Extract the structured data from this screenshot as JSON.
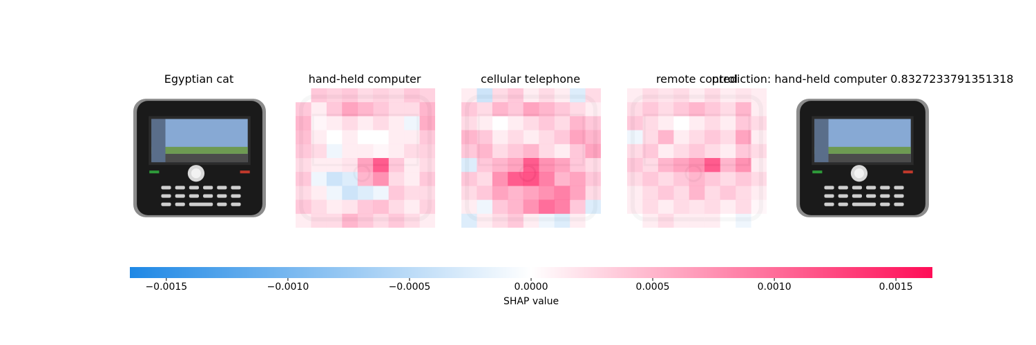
{
  "chart_data": {
    "type": "heatmap",
    "panels": [
      {
        "title": "Egyptian cat",
        "kind": "image"
      },
      {
        "title": "hand-held computer",
        "kind": "shap"
      },
      {
        "title": "cellular telephone",
        "kind": "shap"
      },
      {
        "title": "remote control",
        "kind": "shap"
      },
      {
        "title": "prediction: hand-held computer 0.8327233791351318",
        "kind": "image"
      }
    ],
    "colorbar": {
      "label": "SHAP value",
      "range": [
        -0.00165,
        0.00165
      ],
      "ticks": [
        -0.0015,
        -0.001,
        -0.0005,
        0,
        0.0005,
        0.001,
        0.0015
      ],
      "tick_labels": [
        "−0.0015",
        "−0.0010",
        "−0.0005",
        "0.0000",
        "0.0005",
        "0.0010",
        "0.0015"
      ],
      "low_color": "#1e88e5",
      "mid_color": "#ffffff",
      "high_color": "#ff0d57"
    },
    "shap_grids": [
      [
        [
          0.0,
          0.3,
          0.25,
          0.3,
          0.2,
          0.25,
          0.2,
          0.3,
          0.25
        ],
        [
          0.3,
          0.1,
          0.3,
          0.5,
          0.4,
          0.3,
          0.2,
          0.2,
          0.4
        ],
        [
          0.4,
          0.05,
          0.1,
          0.2,
          0.1,
          0.2,
          0.1,
          -0.1,
          0.45
        ],
        [
          0.35,
          0.1,
          0.0,
          0.1,
          0.0,
          0.0,
          0.1,
          0.1,
          0.3
        ],
        [
          0.3,
          0.2,
          -0.1,
          0.1,
          0.1,
          0.05,
          0.1,
          0.2,
          0.25
        ],
        [
          0.2,
          0.1,
          0.1,
          0.15,
          0.5,
          0.9,
          0.3,
          0.1,
          0.2
        ],
        [
          0.3,
          -0.1,
          -0.3,
          -0.2,
          0.4,
          0.6,
          0.2,
          0.1,
          0.3
        ],
        [
          0.2,
          0.1,
          -0.1,
          -0.3,
          -0.2,
          -0.1,
          0.3,
          0.2,
          0.2
        ],
        [
          0.3,
          0.2,
          0.1,
          0.15,
          0.3,
          0.35,
          0.2,
          0.1,
          0.25
        ],
        [
          0.1,
          0.2,
          0.2,
          0.4,
          0.3,
          0.2,
          0.3,
          0.2,
          0.1
        ]
      ],
      [
        [
          0.1,
          -0.3,
          0.2,
          0.3,
          0.1,
          0.2,
          0.1,
          -0.2,
          0.2
        ],
        [
          0.3,
          0.2,
          0.4,
          0.3,
          0.5,
          0.4,
          0.3,
          0.2,
          0.1
        ],
        [
          0.2,
          0.1,
          0.0,
          0.1,
          0.2,
          0.3,
          0.2,
          0.4,
          0.3
        ],
        [
          0.4,
          0.3,
          0.1,
          0.2,
          0.1,
          0.2,
          0.3,
          0.5,
          0.4
        ],
        [
          0.3,
          0.4,
          0.2,
          0.3,
          0.4,
          0.2,
          0.1,
          0.3,
          0.5
        ],
        [
          -0.2,
          0.3,
          0.4,
          0.5,
          0.9,
          0.6,
          0.5,
          0.3,
          0.2
        ],
        [
          0.3,
          0.2,
          0.6,
          0.9,
          0.95,
          0.7,
          0.4,
          0.5,
          0.3
        ],
        [
          0.2,
          0.3,
          0.5,
          0.4,
          0.5,
          0.6,
          0.7,
          0.5,
          0.2
        ],
        [
          0.1,
          -0.1,
          0.3,
          0.4,
          0.6,
          0.8,
          0.7,
          0.3,
          -0.2
        ],
        [
          -0.2,
          0.1,
          0.2,
          0.3,
          0.1,
          -0.1,
          -0.2,
          0.1,
          0.0
        ]
      ],
      [
        [
          0.1,
          0.2,
          0.15,
          0.2,
          0.1,
          0.2,
          0.1,
          0.15,
          0.1
        ],
        [
          0.2,
          0.3,
          0.2,
          0.3,
          0.4,
          0.3,
          0.2,
          0.4,
          0.1
        ],
        [
          0.3,
          0.2,
          0.1,
          0.0,
          0.1,
          0.2,
          0.1,
          0.3,
          0.2
        ],
        [
          -0.1,
          0.2,
          0.4,
          0.1,
          0.2,
          0.3,
          0.2,
          0.5,
          0.1
        ],
        [
          0.2,
          0.3,
          0.1,
          0.2,
          0.3,
          0.2,
          0.1,
          0.3,
          0.2
        ],
        [
          0.3,
          0.2,
          0.4,
          0.5,
          0.6,
          0.9,
          0.4,
          0.6,
          0.1
        ],
        [
          0.2,
          0.3,
          0.2,
          0.3,
          0.4,
          0.3,
          0.2,
          0.3,
          0.2
        ],
        [
          0.1,
          0.2,
          0.3,
          0.2,
          0.4,
          0.2,
          0.3,
          0.2,
          0.1
        ],
        [
          0.1,
          0.2,
          0.1,
          0.2,
          0.15,
          0.2,
          0.1,
          0.2,
          0.05
        ],
        [
          0.0,
          0.1,
          0.2,
          0.1,
          0.1,
          0.1,
          0.0,
          -0.1,
          0.0
        ]
      ]
    ]
  }
}
